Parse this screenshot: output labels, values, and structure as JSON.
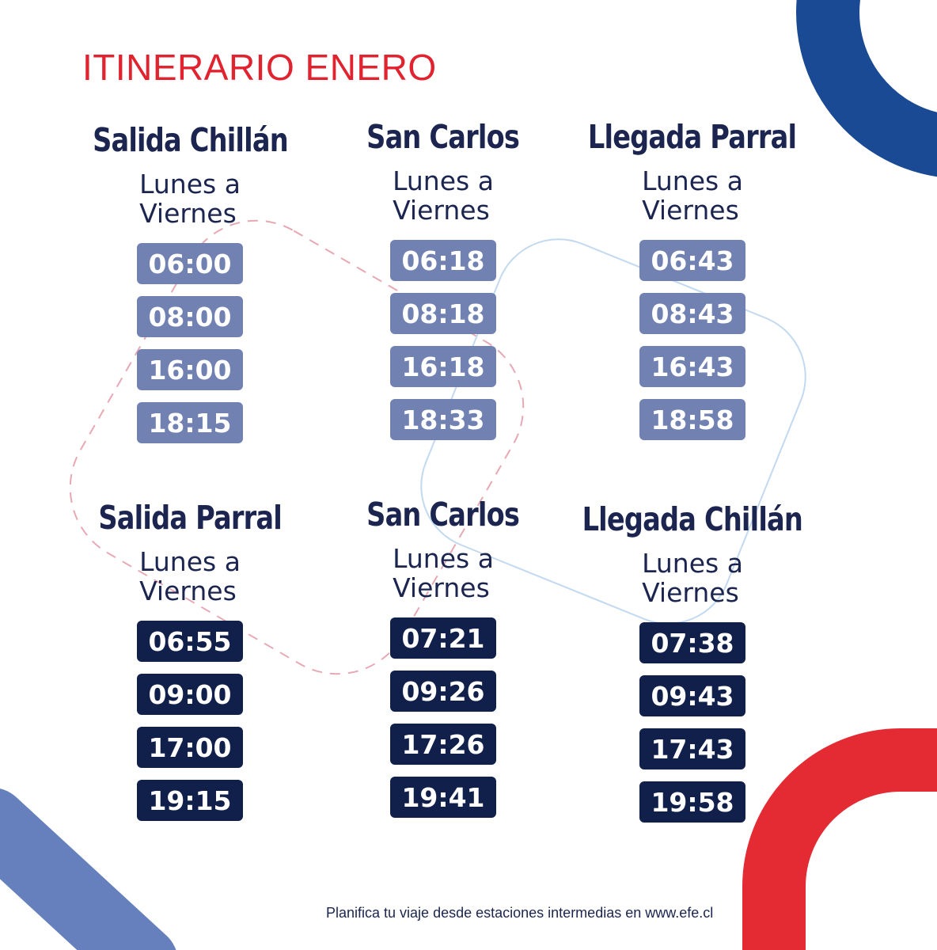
{
  "title": "ITINERARIO ENERO",
  "colors": {
    "title": "#e1232f",
    "text": "#1b2550",
    "outbound_badge": "#7182b2",
    "return_badge": "#10204b",
    "blue_arc": "#1a4a94",
    "red_arc": "#e42a32",
    "light_blue_band": "#6680bd",
    "dashed_pink": "#e7a8b3",
    "thin_blue": "#c3d9ef"
  },
  "outbound": [
    {
      "station": "Salida Chillán",
      "days_line1": "Lunes a",
      "days_line2": "Viernes",
      "times": [
        "06:00",
        "08:00",
        "16:00",
        "18:15"
      ]
    },
    {
      "station": "San Carlos",
      "days_line1": "Lunes a",
      "days_line2": "Viernes",
      "times": [
        "06:18",
        "08:18",
        "16:18",
        "18:33"
      ]
    },
    {
      "station": "Llegada Parral",
      "days_line1": "Lunes a",
      "days_line2": "Viernes",
      "times": [
        "06:43",
        "08:43",
        "16:43",
        "18:58"
      ]
    }
  ],
  "return": [
    {
      "station": "Salida Parral",
      "days_line1": "Lunes a",
      "days_line2": "Viernes",
      "times": [
        "06:55",
        "09:00",
        "17:00",
        "19:15"
      ]
    },
    {
      "station": "San Carlos",
      "days_line1": "Lunes a",
      "days_line2": "Viernes",
      "times": [
        "07:21",
        "09:26",
        "17:26",
        "19:41"
      ]
    },
    {
      "station": "Llegada Chillán",
      "days_line1": "Lunes a",
      "days_line2": "Viernes",
      "times": [
        "07:38",
        "09:43",
        "17:43",
        "19:58"
      ]
    }
  ],
  "footer": "Planifica tu viaje desde estaciones intermedias en www.efe.cl"
}
